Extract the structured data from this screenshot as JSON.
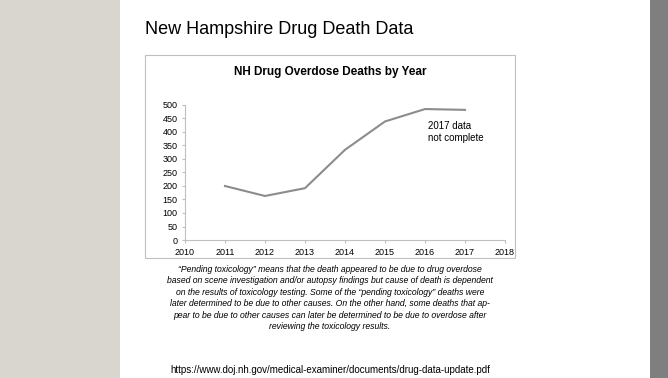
{
  "slide": {
    "title": "New Hampshire Drug Death Data",
    "note": "“Pending toxicology” means that the death appeared to be due to drug overdose\nbased on scene investigation and/or autopsy findings but cause of death is dependent\non the results of toxicology testing. Some of the “pending toxicology” deaths were\nlater determined to be due to other causes. On the other hand, some deaths that ap-\npear to be due to other causes can later be determined to be due to overdose after\nreviewing the toxicology results.",
    "source": "https://www.doj.nh.gov/medical-examiner/documents/drug-data-update.pdf"
  },
  "chart_data": {
    "type": "line",
    "title": "NH Drug Overdose Deaths by Year",
    "x": [
      2011,
      2012,
      2013,
      2014,
      2015,
      2016,
      2017
    ],
    "values": [
      200,
      163,
      192,
      334,
      439,
      485,
      482
    ],
    "color": "#8c8c8c",
    "xlim": [
      2010,
      2018
    ],
    "xticks": [
      2010,
      2011,
      2012,
      2013,
      2014,
      2015,
      2016,
      2017,
      2018
    ],
    "ylim": [
      0,
      500
    ],
    "yticks": [
      0,
      50,
      100,
      150,
      200,
      250,
      300,
      350,
      400,
      450,
      500
    ],
    "grid": false,
    "annotations": [
      "2017 data\nnot complete"
    ]
  }
}
